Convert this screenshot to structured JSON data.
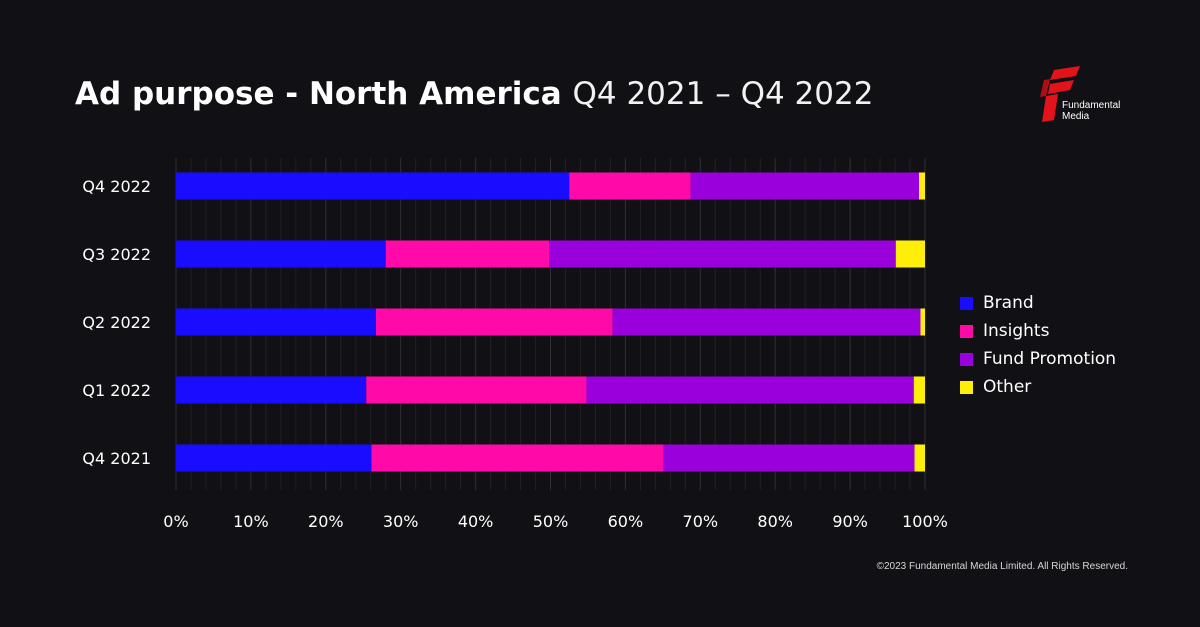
{
  "header": {
    "title_bold": "Ad purpose - North America",
    "title_light": "Q4 2021 – Q4 2022"
  },
  "logo": {
    "line1": "Fundamental",
    "line2": "Media",
    "icon": "fundamental-media-logo-icon",
    "color": "#e3131b"
  },
  "footer": {
    "copyright": "©2023 Fundamental Media Limited. All Rights Reserved."
  },
  "chart_data": {
    "type": "bar",
    "orientation": "horizontal",
    "stacked": true,
    "title": "Ad purpose - North America Q4 2021 – Q4 2022",
    "categories": [
      "Q4 2022",
      "Q3 2022",
      "Q2 2022",
      "Q1 2022",
      "Q4 2021"
    ],
    "series": [
      {
        "name": "Brand",
        "color": "#1a0cff",
        "values": [
          52.5,
          28.0,
          26.7,
          25.4,
          26.1
        ]
      },
      {
        "name": "Insights",
        "color": "#ff0aa9",
        "values": [
          16.2,
          21.8,
          31.6,
          29.4,
          39.0
        ]
      },
      {
        "name": "Fund Promotion",
        "color": "#9a00db",
        "values": [
          30.5,
          46.3,
          41.1,
          43.7,
          33.5
        ]
      },
      {
        "name": "Other",
        "color": "#ffee0a",
        "values": [
          0.8,
          3.9,
          0.6,
          1.5,
          1.4
        ]
      }
    ],
    "xlim": [
      0,
      100
    ],
    "xticks": [
      "0%",
      "10%",
      "20%",
      "30%",
      "40%",
      "50%",
      "60%",
      "70%",
      "80%",
      "90%",
      "100%"
    ],
    "xlabel": "",
    "ylabel": "",
    "grid": "vertical",
    "legend_position": "right"
  }
}
